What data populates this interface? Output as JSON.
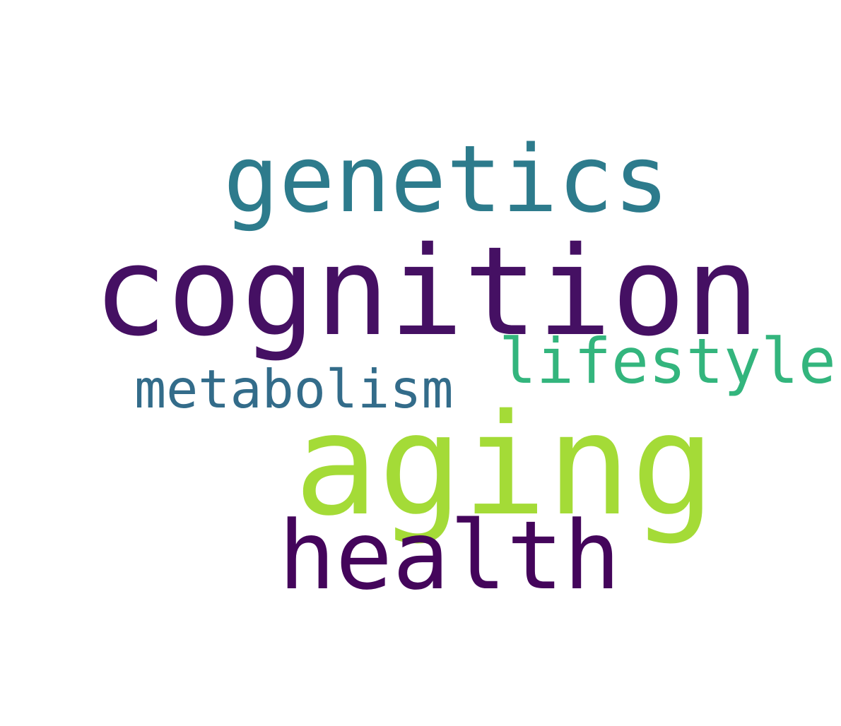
{
  "words": [
    {
      "text": "genetics",
      "color": "#2d7b8c"
    },
    {
      "text": "cognition",
      "color": "#451063"
    },
    {
      "text": "lifestyle",
      "color": "#33b57d"
    },
    {
      "text": "metabolism",
      "color": "#336c8a"
    },
    {
      "text": "aging",
      "color": "#a4db37"
    },
    {
      "text": "health",
      "color": "#44055b"
    }
  ]
}
